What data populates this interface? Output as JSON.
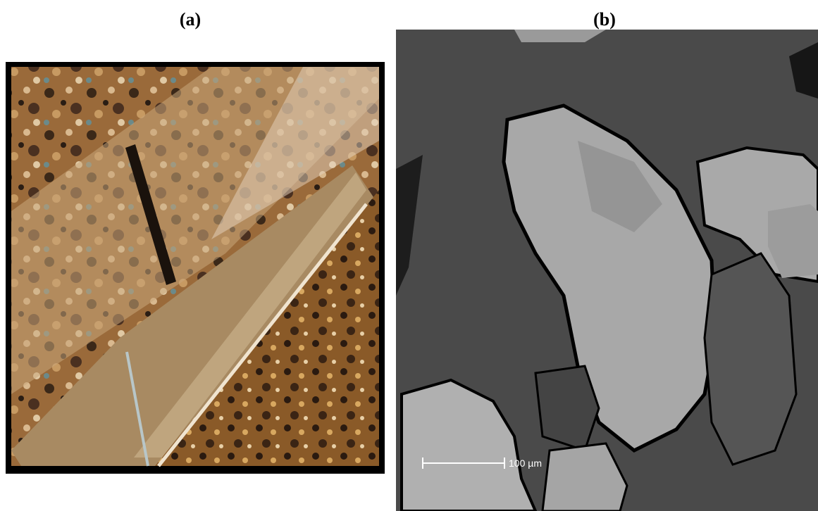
{
  "panels": [
    {
      "label": "(a)"
    },
    {
      "label": "(b)",
      "scale_bar": "100 µm"
    }
  ]
}
